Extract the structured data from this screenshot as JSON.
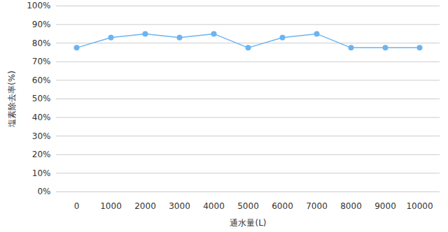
{
  "chart_data": {
    "type": "line",
    "x_label": "通水量(L)",
    "y_label": "塩素除去率(%)",
    "categories": [
      "0",
      "1000",
      "2000",
      "3000",
      "4000",
      "5000",
      "6000",
      "7000",
      "8000",
      "9000",
      "10000"
    ],
    "values": [
      77.5,
      83,
      85,
      83,
      85,
      77.5,
      83,
      85,
      77.5,
      77.5,
      77.5
    ],
    "color": "#6cb4f0",
    "marker": "circle",
    "ylim": [
      0,
      100
    ],
    "yticks": [
      {
        "value": 0,
        "label": "0%"
      },
      {
        "value": 10,
        "label": "10%"
      },
      {
        "value": 20,
        "label": "20%"
      },
      {
        "value": 30,
        "label": "30%"
      },
      {
        "value": 40,
        "label": "40%"
      },
      {
        "value": 50,
        "label": "50%"
      },
      {
        "value": 60,
        "label": "60%"
      },
      {
        "value": 70,
        "label": "70%"
      },
      {
        "value": 80,
        "label": "80%"
      },
      {
        "value": 90,
        "label": "90%"
      },
      {
        "value": 100,
        "label": "100%"
      }
    ],
    "grid": true
  }
}
